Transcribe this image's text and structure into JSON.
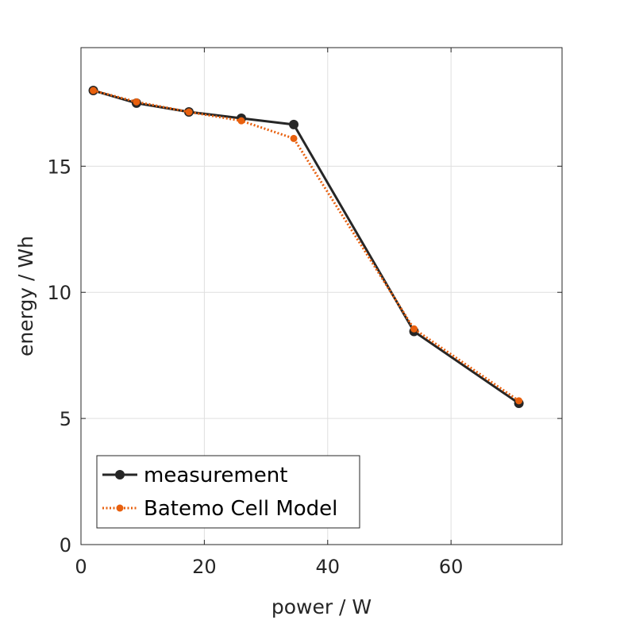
{
  "chart_data": {
    "type": "line",
    "xlabel": "power / W",
    "ylabel": "energy / Wh",
    "xlim": [
      0,
      78
    ],
    "ylim": [
      0,
      19.7
    ],
    "xticks": [
      0,
      20,
      40,
      60
    ],
    "yticks": [
      0,
      5,
      10,
      15
    ],
    "xtick_labels": [
      "0",
      "20",
      "40",
      "60"
    ],
    "ytick_labels": [
      "0",
      "5",
      "10",
      "15"
    ],
    "grid": true,
    "legend_position": "bottom-left",
    "series": [
      {
        "name": "measurement",
        "color": "#262626",
        "line_style": "solid",
        "marker": "circle",
        "x": [
          2,
          9,
          17.5,
          26,
          34.5,
          54,
          71
        ],
        "y": [
          18.0,
          17.5,
          17.15,
          16.9,
          16.65,
          8.45,
          5.6
        ]
      },
      {
        "name": "Batemo Cell Model",
        "color": "#e8600e",
        "line_style": "dotted",
        "marker": "circle",
        "x": [
          2,
          9,
          17.5,
          26,
          34.5,
          54,
          71
        ],
        "y": [
          18.0,
          17.55,
          17.15,
          16.8,
          16.1,
          8.55,
          5.7
        ]
      }
    ]
  }
}
